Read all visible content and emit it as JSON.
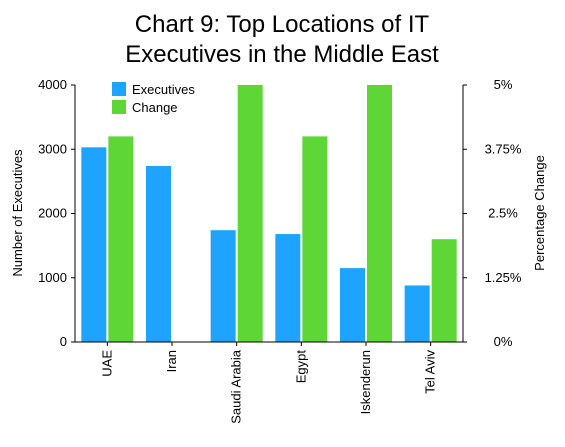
{
  "chart_data": {
    "type": "bar",
    "title": "Chart 9: Top Locations of IT Executives in the Middle East",
    "title_lines": [
      "Chart 9: Top Locations of IT",
      "Executives in the Middle East"
    ],
    "categories": [
      "UAE",
      "Iran",
      "Saudi Arabia",
      "Egypt",
      "Iskenderun",
      "Tel Aviv"
    ],
    "series": [
      {
        "name": "Executives",
        "axis": "left",
        "color": "#1ea3ff",
        "values": [
          3030,
          2740,
          1740,
          1680,
          1150,
          880
        ]
      },
      {
        "name": "Change",
        "axis": "right",
        "color": "#5ed636",
        "values": [
          4.0,
          0,
          5.0,
          4.0,
          5.0,
          2.0
        ]
      }
    ],
    "ylabel": "Number of Executives",
    "ylim": [
      0,
      4000
    ],
    "yticks": [
      "0",
      "1000",
      "2000",
      "3000",
      "4000"
    ],
    "y2label": "Percentage Change",
    "y2lim": [
      0,
      5
    ],
    "y2ticks": [
      "0%",
      "1.25%",
      "2.5%",
      "3.75%",
      "5%"
    ],
    "grid": false,
    "legend_position": "top-left"
  }
}
